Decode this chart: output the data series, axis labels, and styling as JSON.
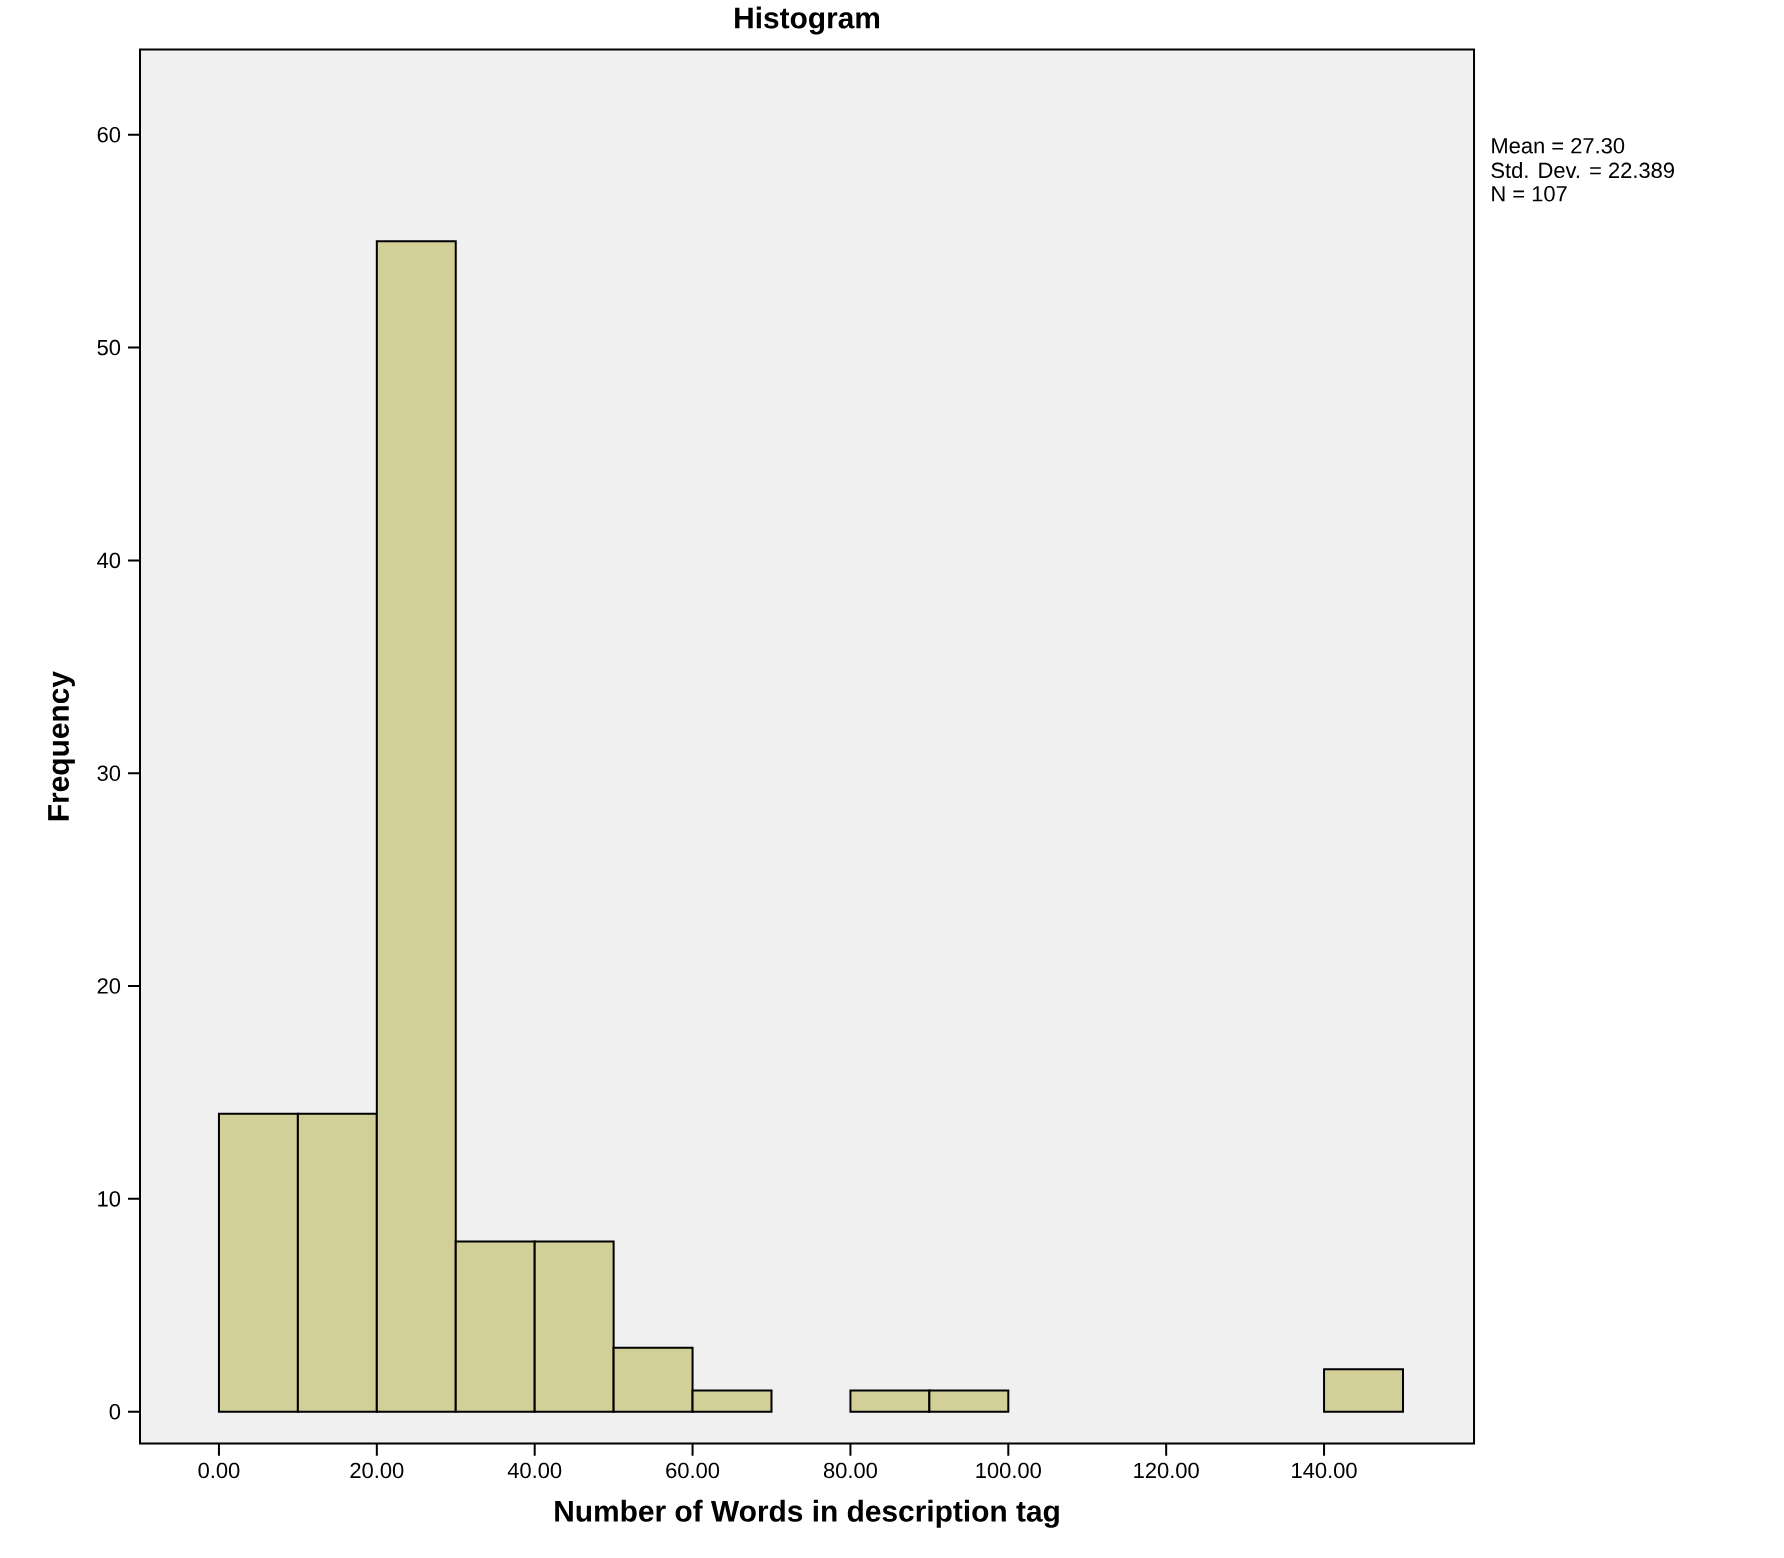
{
  "chart_data": {
    "type": "histogram",
    "title": "Histogram",
    "xlabel": "Number of Words in description tag",
    "ylabel": "Frequency",
    "bins": [
      0,
      10,
      20,
      30,
      40,
      50,
      60,
      70,
      80,
      90,
      100,
      110,
      120,
      130,
      140,
      150
    ],
    "values": [
      14,
      14,
      55,
      8,
      8,
      3,
      1,
      0,
      1,
      1,
      0,
      0,
      0,
      0,
      2
    ],
    "color": "#d3cf98",
    "xlim": [
      -10,
      159
    ],
    "ylim": [
      -1.5,
      64
    ],
    "xticks": [
      {
        "value": 0,
        "label": "0.00"
      },
      {
        "value": 20,
        "label": "20.00"
      },
      {
        "value": 40,
        "label": "40.00"
      },
      {
        "value": 60,
        "label": "60.00"
      },
      {
        "value": 80,
        "label": "80.00"
      },
      {
        "value": 100,
        "label": "100.00"
      },
      {
        "value": 120,
        "label": "120.00"
      },
      {
        "value": 140,
        "label": "140.00"
      }
    ],
    "yticks": [
      0,
      10,
      20,
      30,
      40,
      50,
      60
    ],
    "annotations": [
      "Mean = 27.30",
      "Std. Dev. = 22.389",
      "N = 107"
    ]
  }
}
